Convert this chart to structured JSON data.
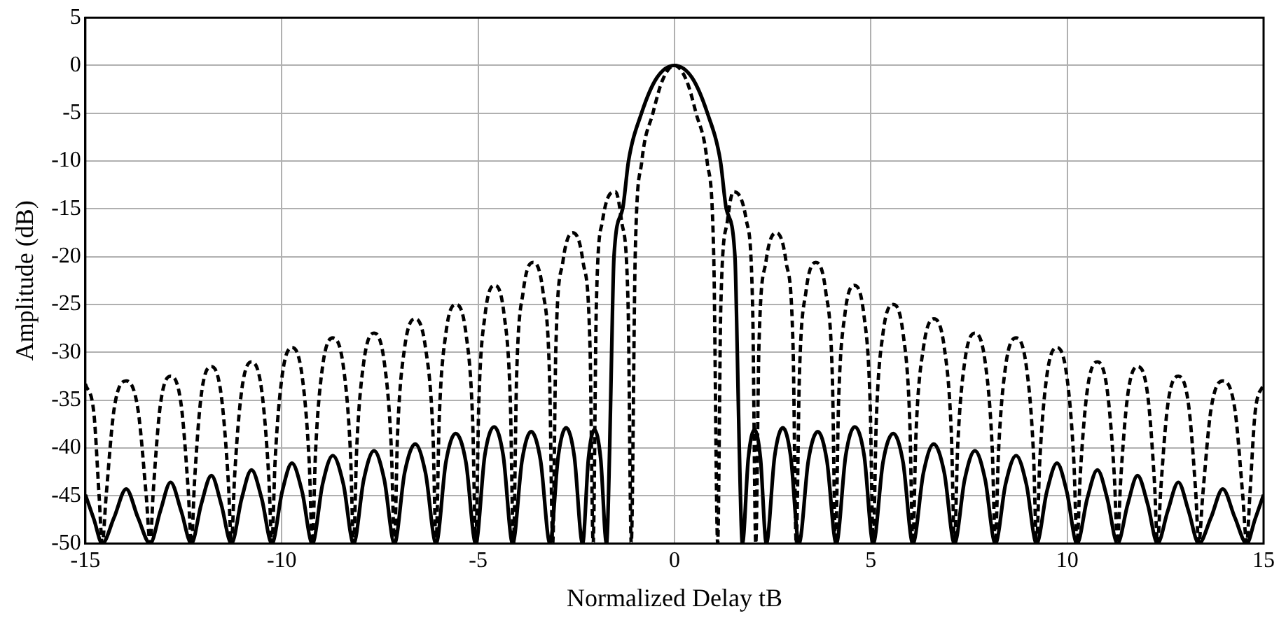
{
  "chart_data": {
    "type": "line",
    "xlabel": "Normalized Delay tB",
    "ylabel": "Amplitude (dB)",
    "xlim": [
      -15,
      15
    ],
    "xticks": [
      -15,
      -10,
      -5,
      0,
      5,
      10,
      15
    ],
    "ylim": [
      -50,
      5
    ],
    "yticks": [
      -50,
      -45,
      -40,
      -35,
      -30,
      -25,
      -20,
      -15,
      -10,
      -5,
      0,
      5
    ],
    "grid": true,
    "marker": "none",
    "series": [
      {
        "color": "#000000",
        "line_style": "dashed",
        "x": [
          -15,
          -14.78,
          -14.65,
          -14.57,
          -14.47,
          -14.27,
          -13.96,
          -13.66,
          -13.45,
          -13.35,
          -13.27,
          -13.09,
          -12.83,
          -12.56,
          -12.38,
          -12.3,
          -12.22,
          -12.05,
          -11.79,
          -11.54,
          -11.36,
          -11.28,
          -11.2,
          -11.02,
          -10.77,
          -10.51,
          -10.33,
          -10.25,
          -10.17,
          -9.99,
          -9.74,
          -9.48,
          -9.3,
          -9.22,
          -9.14,
          -8.96,
          -8.7,
          -8.43,
          -8.25,
          -8.17,
          -8.09,
          -7.91,
          -7.65,
          -7.39,
          -7.21,
          -7.13,
          -7.05,
          -6.87,
          -6.6,
          -6.34,
          -6.15,
          -6.07,
          -5.99,
          -5.82,
          -5.57,
          -5.31,
          -5.14,
          -5.06,
          -4.98,
          -4.82,
          -4.58,
          -4.34,
          -4.18,
          -4.1,
          -4.02,
          -3.85,
          -3.6,
          -3.35,
          -3.18,
          -3.1,
          -3.02,
          -2.84,
          -2.59,
          -2.33,
          -2.15,
          -2.07,
          -1.99,
          -1.83,
          -1.5,
          -1.35,
          -1.18,
          -1.1,
          -1,
          -0.83,
          -0.55,
          -0.3,
          0,
          0.3,
          0.55,
          0.83,
          1,
          1.1,
          1.18,
          1.35,
          1.5,
          1.83,
          1.99,
          2.07,
          2.15,
          2.33,
          2.59,
          2.84,
          3.02,
          3.1,
          3.18,
          3.35,
          3.6,
          3.85,
          4.02,
          4.1,
          4.18,
          4.34,
          4.58,
          4.82,
          4.98,
          5.06,
          5.14,
          5.31,
          5.57,
          5.82,
          5.99,
          6.07,
          6.15,
          6.34,
          6.6,
          6.87,
          7.05,
          7.13,
          7.21,
          7.39,
          7.65,
          7.91,
          8.09,
          8.17,
          8.25,
          8.43,
          8.7,
          8.96,
          9.14,
          9.22,
          9.3,
          9.48,
          9.74,
          9.99,
          10.17,
          10.25,
          10.33,
          10.51,
          10.77,
          11.02,
          11.2,
          11.28,
          11.36,
          11.54,
          11.79,
          12.05,
          12.22,
          12.3,
          12.38,
          12.56,
          12.83,
          13.09,
          13.27,
          13.35,
          13.45,
          13.66,
          13.96,
          14.27,
          14.47,
          14.57,
          14.65,
          14.78,
          15
        ],
        "values": [
          -33.3,
          -36.5,
          -45,
          -50,
          -45,
          -36,
          -33,
          -36,
          -45,
          -50,
          -44.5,
          -35.5,
          -32.5,
          -35.5,
          -44.5,
          -50,
          -43.5,
          -34.5,
          -31.5,
          -34.5,
          -43.5,
          -50,
          -43,
          -34,
          -31,
          -34,
          -43,
          -50,
          -41.5,
          -32.5,
          -29.5,
          -32.5,
          -41.5,
          -50,
          -40.5,
          -31.5,
          -28.5,
          -31.5,
          -40.5,
          -50,
          -40,
          -31,
          -28,
          -31,
          -40,
          -50,
          -38.5,
          -29.5,
          -26.5,
          -29.5,
          -38.5,
          -50,
          -37,
          -28,
          -25,
          -28,
          -37,
          -50,
          -35,
          -26,
          -23,
          -26,
          -35,
          -50,
          -32.6,
          -23.6,
          -20.6,
          -23.6,
          -32.6,
          -50,
          -29.5,
          -20.5,
          -17.5,
          -20.5,
          -29.5,
          -50,
          -25.2,
          -16.2,
          -13.2,
          -16.2,
          -25.2,
          -50,
          -20,
          -10,
          -5,
          -1.5,
          0,
          -1.5,
          -5,
          -10,
          -20,
          -50,
          -25.2,
          -16.2,
          -13.2,
          -16.2,
          -25.2,
          -50,
          -29.5,
          -20.5,
          -17.5,
          -20.5,
          -29.5,
          -50,
          -32.6,
          -23.6,
          -20.6,
          -23.6,
          -32.6,
          -50,
          -35,
          -26,
          -23,
          -26,
          -35,
          -50,
          -37,
          -28,
          -25,
          -28,
          -37,
          -50,
          -38.5,
          -29.5,
          -26.5,
          -29.5,
          -38.5,
          -50,
          -40,
          -31,
          -28,
          -31,
          -40,
          -50,
          -40.5,
          -31.5,
          -28.5,
          -31.5,
          -40.5,
          -50,
          -41.5,
          -32.5,
          -29.5,
          -32.5,
          -41.5,
          -50,
          -43,
          -34,
          -31,
          -34,
          -43,
          -50,
          -43.5,
          -34.5,
          -31.5,
          -34.5,
          -43.5,
          -50,
          -44.5,
          -35.5,
          -32.5,
          -35.5,
          -44.5,
          -50,
          -45,
          -36,
          -33,
          -36,
          -45,
          -50,
          -45,
          -36.5,
          -33.3
        ]
      },
      {
        "color": "#000000",
        "line_style": "solid",
        "x": [
          -15,
          -14.78,
          -14.57,
          -14.27,
          -13.96,
          -13.66,
          -13.35,
          -13.09,
          -12.83,
          -12.56,
          -12.3,
          -12.05,
          -11.79,
          -11.54,
          -11.28,
          -11.02,
          -10.77,
          -10.51,
          -10.25,
          -9.99,
          -9.74,
          -9.48,
          -9.22,
          -8.96,
          -8.7,
          -8.43,
          -8.17,
          -7.91,
          -7.65,
          -7.39,
          -7.13,
          -6.87,
          -6.6,
          -6.34,
          -6.07,
          -5.82,
          -5.57,
          -5.31,
          -5.06,
          -4.83,
          -4.59,
          -4.36,
          -4.12,
          -3.88,
          -3.65,
          -3.41,
          -3.17,
          -2.96,
          -2.76,
          -2.55,
          -2.34,
          -2.19,
          -2.04,
          -1.88,
          -1.73,
          -1.65,
          -1.6,
          -1.54,
          -1.32,
          -1.17,
          -0.84,
          -0.45,
          0,
          0.45,
          0.84,
          1.17,
          1.32,
          1.54,
          1.6,
          1.65,
          1.73,
          1.88,
          2.04,
          2.19,
          2.34,
          2.55,
          2.76,
          2.96,
          3.17,
          3.41,
          3.65,
          3.88,
          4.12,
          4.36,
          4.59,
          4.83,
          5.06,
          5.31,
          5.57,
          5.82,
          6.07,
          6.34,
          6.6,
          6.87,
          7.13,
          7.39,
          7.65,
          7.91,
          8.17,
          8.43,
          8.7,
          8.96,
          9.22,
          9.48,
          9.74,
          9.99,
          10.25,
          10.51,
          10.77,
          11.02,
          11.28,
          11.54,
          11.79,
          12.05,
          12.3,
          12.56,
          12.83,
          13.09,
          13.35,
          13.66,
          13.96,
          14.27,
          14.57,
          14.78,
          15
        ],
        "values": [
          -44.9,
          -47.5,
          -50,
          -47.3,
          -44.3,
          -47.3,
          -50,
          -46.6,
          -43.6,
          -46.6,
          -50,
          -45.9,
          -42.9,
          -45.9,
          -50,
          -45.3,
          -42.3,
          -45.3,
          -50,
          -44.6,
          -41.6,
          -44.6,
          -50,
          -43.8,
          -40.8,
          -43.8,
          -50,
          -43.3,
          -40.3,
          -43.3,
          -50,
          -42.6,
          -39.6,
          -42.6,
          -50,
          -41.5,
          -38.5,
          -41.5,
          -50,
          -40.8,
          -37.8,
          -40.8,
          -50,
          -41.3,
          -38.3,
          -41.3,
          -50,
          -40.9,
          -37.9,
          -40.9,
          -50,
          -41.1,
          -38.1,
          -41.1,
          -50,
          -40,
          -30,
          -20,
          -15,
          -10,
          -5,
          -1.3,
          0,
          -1.3,
          -5,
          -10,
          -15,
          -20,
          -30,
          -40,
          -50,
          -41.1,
          -38.1,
          -41.1,
          -50,
          -40.9,
          -37.9,
          -40.9,
          -50,
          -41.3,
          -38.3,
          -41.3,
          -50,
          -40.8,
          -37.8,
          -40.8,
          -50,
          -41.5,
          -38.5,
          -41.5,
          -50,
          -42.6,
          -39.6,
          -42.6,
          -50,
          -43.3,
          -40.3,
          -43.3,
          -50,
          -43.8,
          -40.8,
          -43.8,
          -50,
          -44.6,
          -41.6,
          -44.6,
          -50,
          -45.3,
          -42.3,
          -45.3,
          -50,
          -45.9,
          -42.9,
          -45.9,
          -50,
          -46.6,
          -43.6,
          -46.6,
          -50,
          -47.3,
          -44.3,
          -47.3,
          -50,
          -47.5,
          -44.9
        ]
      }
    ]
  }
}
